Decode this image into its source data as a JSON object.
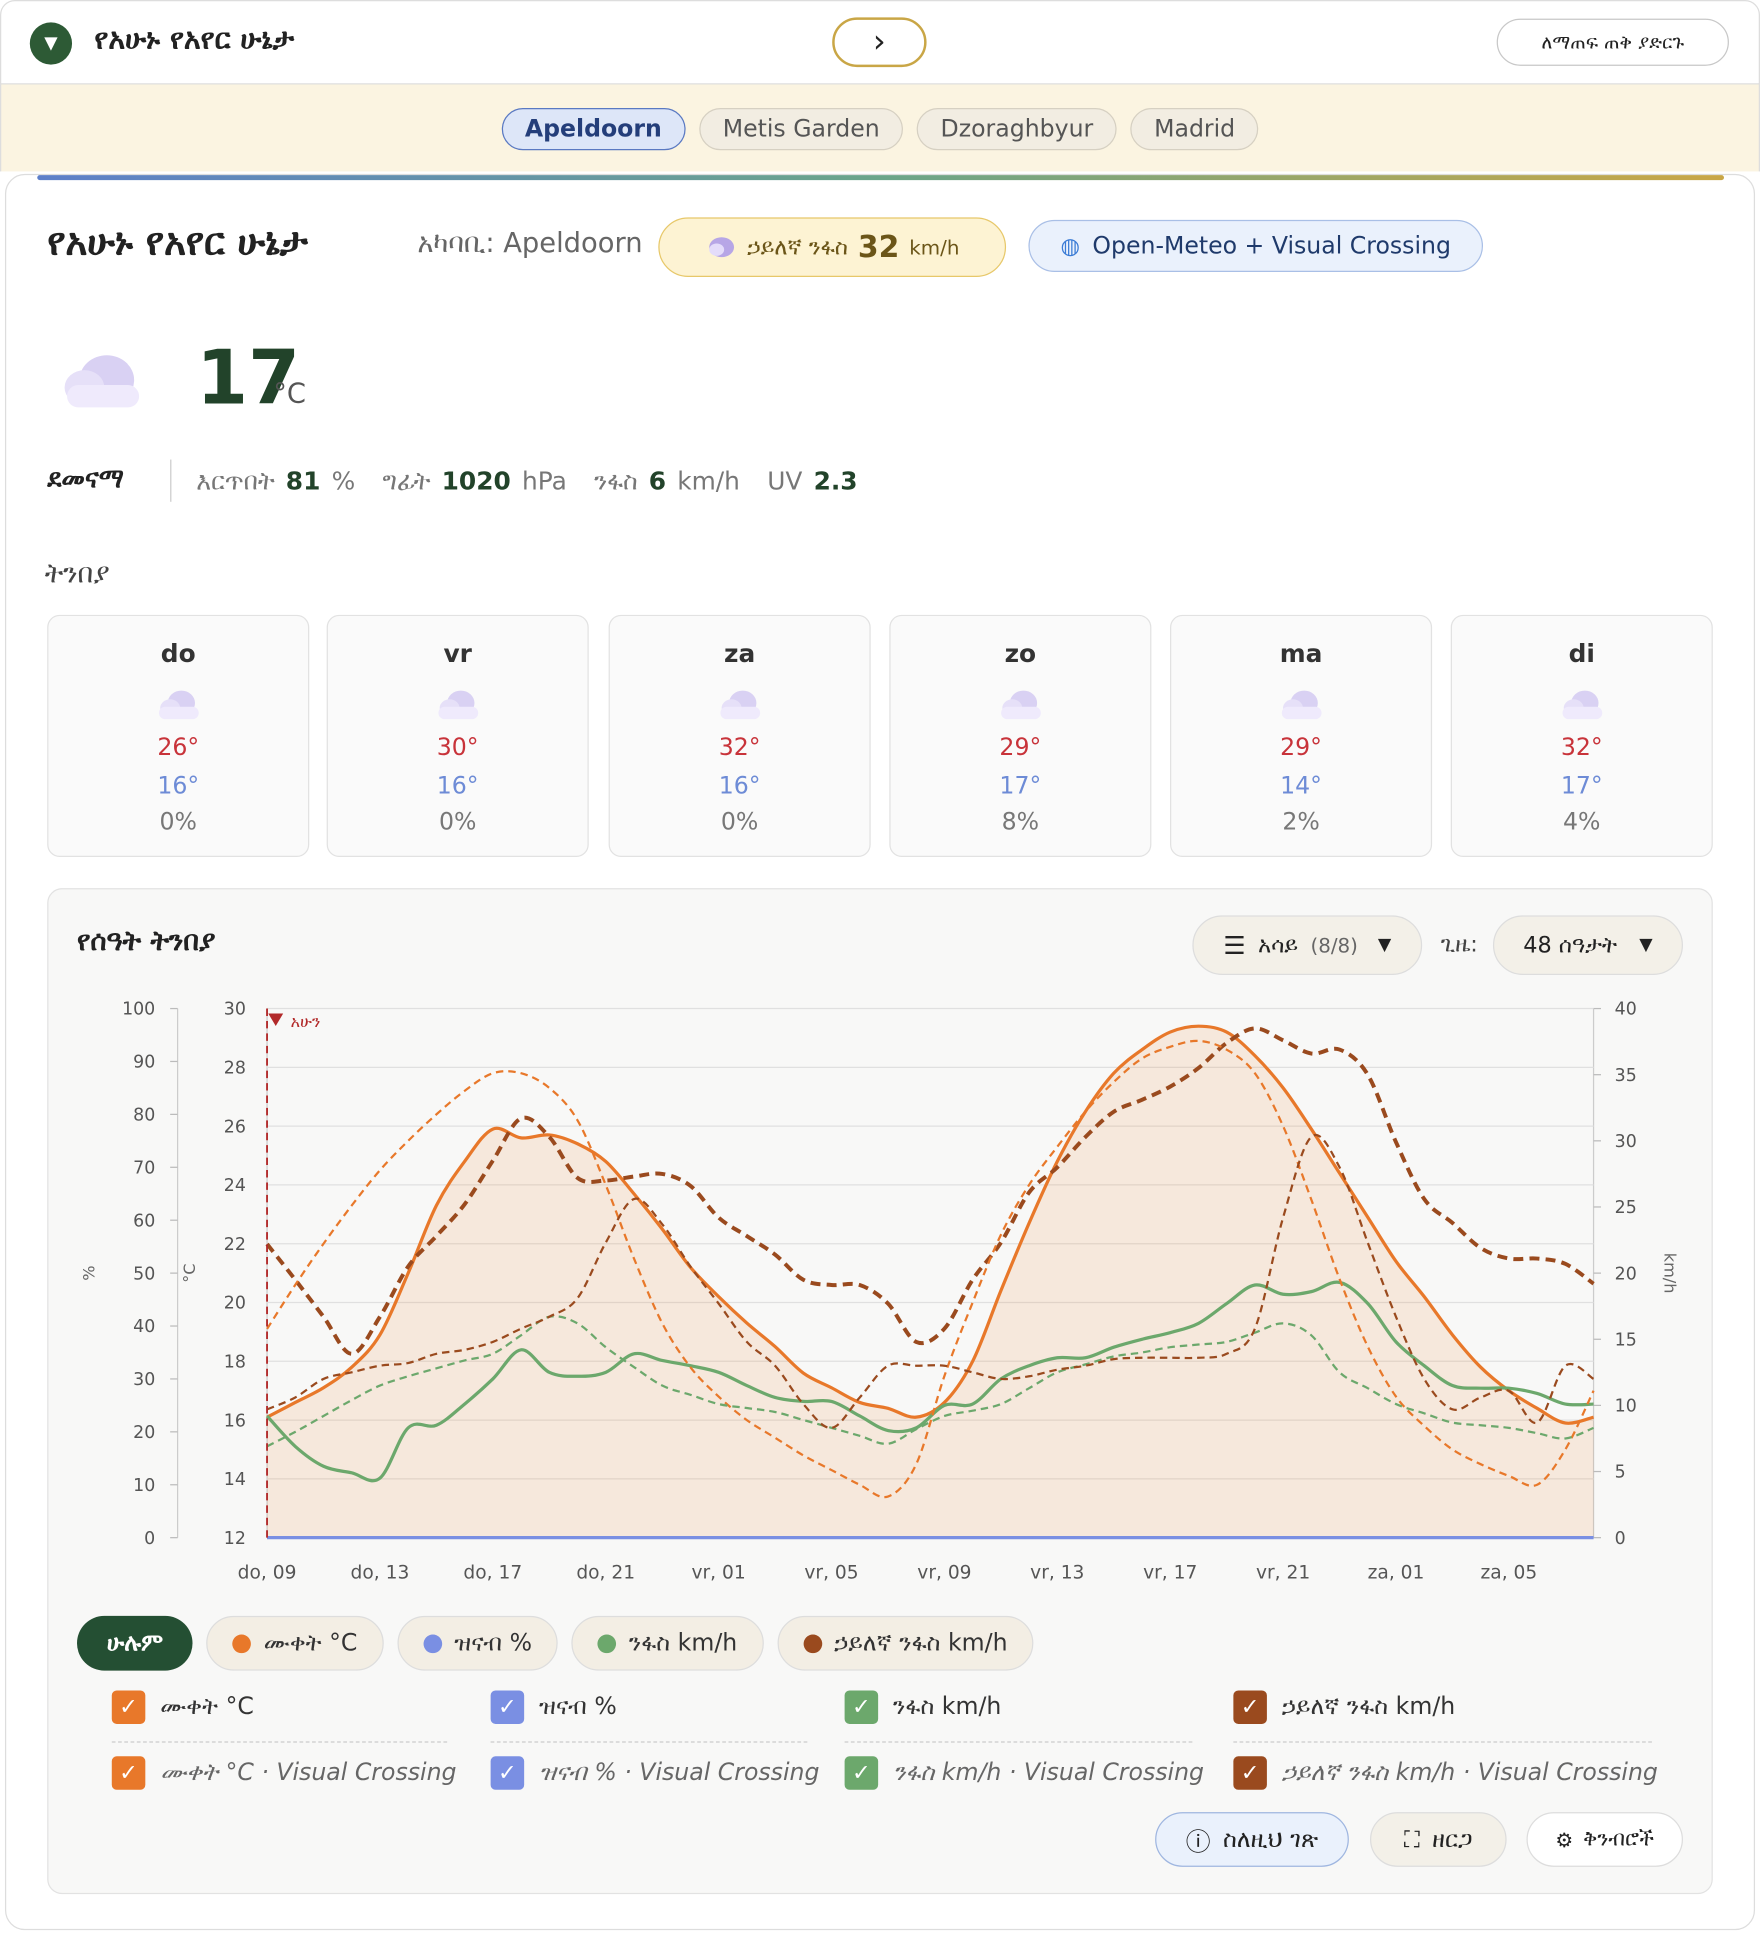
{
  "header": {
    "title": "የአሁኑ የአየር ሁኔታ",
    "next_button": "›",
    "collapse_button": "ለማጠፍ ጠቅ ያድርጉ"
  },
  "locations": [
    "Apeldoorn",
    "Metis Garden",
    "Dzoraghbyur",
    "Madrid"
  ],
  "current": {
    "title": "የአሁኑ የአየር ሁኔታ",
    "location": "አካባቢ: Apeldoorn",
    "gust_label": "ኃይለኛ ንፋስ",
    "gust_value": 32,
    "gust_unit": "km/h",
    "source": "Open-Meteo + Visual Crossing",
    "temperature": 17,
    "temperature_unit": "°C",
    "condition": "ደመናማ",
    "metrics": [
      {
        "label": "እርጥበት",
        "value": 81,
        "unit": "%"
      },
      {
        "label": "ግፊት",
        "value": 1020,
        "unit": "hPa"
      },
      {
        "label": "ንፋስ",
        "value": 6,
        "unit": "km/h"
      },
      {
        "label": "UV",
        "value": 2.3
      }
    ]
  },
  "forecast": {
    "title": "ትንበያ",
    "days": [
      {
        "day": "do",
        "high": "26°",
        "low": "16°",
        "precip": "0%"
      },
      {
        "day": "vr",
        "high": "30°",
        "low": "16°",
        "precip": "0%"
      },
      {
        "day": "za",
        "high": "32°",
        "low": "16°",
        "precip": "0%"
      },
      {
        "day": "zo",
        "high": "29°",
        "low": "17°",
        "precip": "8%"
      },
      {
        "day": "ma",
        "high": "29°",
        "low": "14°",
        "precip": "2%"
      },
      {
        "day": "di",
        "high": "32°",
        "low": "17°",
        "precip": "4%"
      }
    ]
  },
  "controls": {
    "show": "አሳይ",
    "show_count": "(8/8)",
    "period_label": "ጊዜ:",
    "period": "48 ሰዓታት"
  },
  "footer_buttons": [
    "ስለዚህ ገጽ",
    "ዘርጋ",
    "ቅንብሮች"
  ],
  "chart_data": {
    "type": "line",
    "title": "የሰዓት ትንበያ",
    "now_label": "አሁን",
    "y_label": "°C",
    "y2_label": "km/h",
    "y3_label": "%",
    "categories": [
      "do, 09",
      null,
      null,
      null,
      "do, 13",
      null,
      null,
      null,
      "do, 17",
      null,
      null,
      null,
      "do, 21",
      null,
      null,
      null,
      "vr, 01",
      null,
      null,
      null,
      "vr, 05",
      null,
      null,
      null,
      "vr, 09",
      null,
      null,
      null,
      "vr, 13",
      null,
      null,
      null,
      "vr, 17",
      null,
      null,
      null,
      "vr, 21",
      null,
      null,
      null,
      "za, 01",
      null,
      null,
      null,
      "za, 05",
      null,
      null,
      null
    ],
    "ylim": [
      12,
      30
    ],
    "yticks": [
      12,
      14,
      16,
      18,
      20,
      22,
      24,
      26,
      28,
      30
    ],
    "y2lim": [
      0,
      40
    ],
    "y2ticks": [
      0,
      5,
      10,
      15,
      20,
      25,
      30,
      35,
      40
    ],
    "y3lim": [
      0,
      100
    ],
    "y3ticks": [
      0,
      10,
      20,
      30,
      40,
      50,
      60,
      70,
      80,
      90,
      100
    ],
    "grid": true,
    "filters": [
      "ሁሉም",
      "ሙቀት °C",
      "ዝናብ %",
      "ንፋስ km/h",
      "ኃይለኛ ንፋስ km/h"
    ],
    "series": [
      {
        "name": "ሙቀት °C",
        "color": "#e8782a",
        "axis": "y",
        "dashed": false,
        "fill": true,
        "values": [
          16.1,
          16.6,
          17.1,
          17.8,
          18.9,
          21.0,
          23.3,
          24.8,
          25.9,
          25.6,
          25.7,
          25.4,
          24.8,
          23.7,
          22.5,
          21.2,
          20.2,
          19.3,
          18.5,
          17.6,
          17.1,
          16.6,
          16.4,
          16.1,
          16.6,
          18.0,
          20.4,
          22.7,
          24.8,
          26.5,
          27.8,
          28.6,
          29.2,
          29.4,
          29.2,
          28.4,
          27.3,
          25.9,
          24.4,
          22.9,
          21.4,
          20.2,
          18.9,
          17.8,
          17.0,
          16.4,
          15.9,
          16.1
        ]
      },
      {
        "name": "ዝናብ %",
        "color": "#7a8fe3",
        "axis": "y3",
        "dashed": false,
        "values": [
          0,
          0,
          0,
          0,
          0,
          0,
          0,
          0,
          0,
          0,
          0,
          0,
          0,
          0,
          0,
          0,
          0,
          0,
          0,
          0,
          0,
          0,
          0,
          0,
          0,
          0,
          0,
          0,
          0,
          0,
          0,
          0,
          0,
          0,
          0,
          0,
          0,
          0,
          0,
          0,
          0,
          0,
          0,
          0,
          0,
          0,
          0,
          0
        ]
      },
      {
        "name": "ንፋስ km/h",
        "color": "#6ca86c",
        "axis": "y2",
        "dashed": false,
        "values": [
          9.2,
          6.9,
          5.4,
          4.9,
          4.5,
          8.3,
          8.5,
          10.1,
          12.0,
          14.2,
          12.5,
          12.2,
          12.5,
          13.9,
          13.4,
          13.0,
          12.5,
          11.5,
          10.6,
          10.3,
          10.3,
          9.2,
          8.1,
          8.3,
          10.0,
          10.1,
          12.0,
          13.0,
          13.6,
          13.6,
          14.4,
          15.0,
          15.5,
          16.2,
          17.7,
          19.1,
          18.4,
          18.6,
          19.3,
          17.7,
          14.8,
          13.0,
          11.5,
          11.3,
          11.3,
          10.9,
          10.1,
          10.1
        ]
      },
      {
        "name": "ኃይለኛ ንፋስ km/h",
        "color": "#9a4a1e",
        "axis": "y2",
        "dashed": true,
        "bold": true,
        "values": [
          22.2,
          19.5,
          16.7,
          13.9,
          16.7,
          20.5,
          22.8,
          25.2,
          28.5,
          31.7,
          30.3,
          27.2,
          27.0,
          27.3,
          27.5,
          26.6,
          24.2,
          22.8,
          21.4,
          19.5,
          19.1,
          19.1,
          17.7,
          14.8,
          15.8,
          19.5,
          22.3,
          26.1,
          28.0,
          30.3,
          32.2,
          33.1,
          34.1,
          35.5,
          37.4,
          38.5,
          37.6,
          36.6,
          36.9,
          35.0,
          29.9,
          25.6,
          23.8,
          21.9,
          21.1,
          21.1,
          20.7,
          19.2
        ]
      },
      {
        "name": "ሙቀት °C · Visual Crossing",
        "color": "#e8782a",
        "axis": "y",
        "dashed": true,
        "values": [
          19.1,
          20.6,
          22.0,
          23.3,
          24.5,
          25.5,
          26.4,
          27.2,
          27.8,
          27.8,
          27.3,
          26.2,
          24.0,
          21.5,
          19.3,
          17.8,
          16.8,
          16.0,
          15.4,
          14.8,
          14.3,
          13.8,
          13.4,
          14.5,
          17.5,
          20.0,
          22.3,
          24.0,
          25.3,
          26.5,
          27.5,
          28.3,
          28.7,
          28.9,
          28.6,
          27.8,
          26.0,
          23.5,
          20.8,
          18.5,
          16.8,
          15.8,
          15.0,
          14.5,
          14.1,
          13.8,
          15.0,
          17.0
        ]
      },
      {
        "name": "ዝናብ % · Visual Crossing",
        "color": "#7a8fe3",
        "axis": "y3",
        "dashed": true,
        "values": [
          0,
          0,
          0,
          0,
          0,
          0,
          0,
          0,
          0,
          0,
          0,
          0,
          0,
          0,
          0,
          0,
          0,
          0,
          0,
          0,
          0,
          0,
          0,
          0,
          0,
          0,
          0,
          0,
          0,
          0,
          0,
          0,
          0,
          0,
          0,
          0,
          0,
          0,
          0,
          0,
          0,
          0,
          0,
          0,
          0,
          0,
          0,
          0
        ]
      },
      {
        "name": "ንፋስ km/h · Visual Crossing",
        "color": "#6ca86c",
        "axis": "y2",
        "dashed": true,
        "values": [
          6.9,
          8.0,
          9.2,
          10.4,
          11.5,
          12.2,
          12.8,
          13.4,
          13.9,
          15.3,
          16.7,
          16.2,
          14.4,
          12.9,
          11.5,
          10.8,
          10.1,
          9.8,
          9.5,
          8.9,
          8.3,
          7.7,
          7.1,
          8.2,
          9.2,
          9.6,
          10.1,
          11.3,
          12.5,
          13.1,
          13.7,
          14.0,
          14.4,
          14.6,
          14.8,
          15.5,
          16.2,
          15.3,
          12.5,
          11.3,
          10.1,
          9.4,
          8.7,
          8.5,
          8.3,
          7.9,
          7.5,
          8.3
        ]
      },
      {
        "name": "ኃይለኛ ንፋስ km/h · Visual Crossing",
        "color": "#9a4a1e",
        "axis": "y2",
        "dashed": true,
        "values": [
          9.7,
          10.6,
          12.0,
          12.5,
          13.0,
          13.2,
          13.9,
          14.2,
          14.8,
          15.8,
          16.7,
          18.1,
          22.3,
          25.6,
          23.7,
          20.5,
          17.7,
          14.8,
          13.0,
          10.1,
          8.3,
          10.6,
          13.0,
          13.0,
          13.0,
          12.5,
          12.0,
          12.2,
          12.7,
          13.0,
          13.5,
          13.6,
          13.6,
          13.6,
          13.9,
          15.8,
          24.2,
          30.3,
          28.0,
          22.3,
          16.7,
          12.0,
          9.7,
          10.6,
          11.1,
          8.7,
          13.0,
          12.0
        ]
      }
    ]
  }
}
